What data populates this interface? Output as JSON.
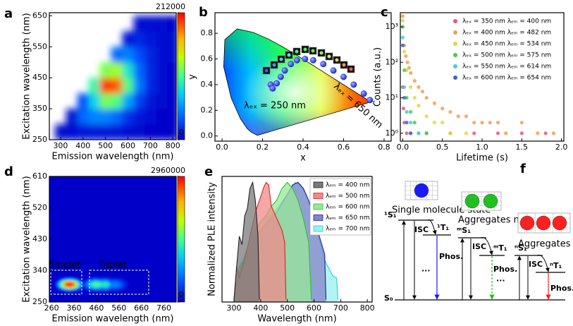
{
  "chart_data": [
    {
      "type": "heatmap",
      "panel_label": "a",
      "x_label": "Emission wavelength (nm)",
      "y_label": "Excitation wavelength (nm)",
      "xlim": [
        250,
        815
      ],
      "ylim": [
        250,
        660
      ],
      "xticks": [
        300,
        400,
        500,
        600,
        700,
        800
      ],
      "yticks": [
        250,
        350,
        450,
        550,
        650
      ],
      "zlim": [
        0,
        212000
      ],
      "zticks": [
        0,
        212000
      ],
      "x": [
        300,
        350,
        400,
        450,
        500,
        550,
        600,
        650,
        700,
        750,
        800
      ],
      "y": [
        275,
        325,
        375,
        425,
        475,
        525,
        575,
        625
      ],
      "z": [
        [
          3000,
          5000,
          8000,
          10000,
          10000,
          8000,
          5000,
          3000,
          1000,
          500,
          500
        ],
        [
          null,
          5000,
          40000,
          50000,
          50000,
          40000,
          20000,
          10000,
          5000,
          2000,
          1000
        ],
        [
          null,
          null,
          30000,
          80000,
          120000,
          110000,
          60000,
          25000,
          8000,
          3000,
          1000
        ],
        [
          null,
          null,
          null,
          100000,
          200000,
          190000,
          110000,
          45000,
          15000,
          5000,
          2000
        ],
        [
          null,
          null,
          null,
          null,
          120000,
          130000,
          90000,
          40000,
          15000,
          5000,
          2000
        ],
        [
          null,
          null,
          null,
          null,
          null,
          40000,
          50000,
          30000,
          15000,
          5000,
          3000
        ],
        [
          null,
          null,
          null,
          null,
          null,
          null,
          10000,
          15000,
          10000,
          5000,
          3000
        ],
        [
          null,
          null,
          null,
          null,
          null,
          null,
          null,
          5000,
          5000,
          3000,
          2000
        ]
      ]
    },
    {
      "type": "cie",
      "panel_label": "b",
      "x_label": "x",
      "y_label": "y",
      "xlim": [
        -0.035,
        0.835
      ],
      "ylim": [
        -0.04,
        0.96
      ],
      "xticks": [
        {
          "value": 0,
          "label": "0.0"
        },
        0.2,
        0.4,
        0.6,
        0.8
      ],
      "yticks": [
        {
          "value": 0,
          "label": "0.0"
        },
        0.2,
        0.4,
        0.6,
        0.8
      ],
      "locus_x": [
        0.1741,
        0.144,
        0.1241,
        0.0913,
        0.0454,
        0.0082,
        0.0139,
        0.0743,
        0.1547,
        0.2296,
        0.3016,
        0.3731,
        0.4441,
        0.5125,
        0.5752,
        0.627,
        0.6915,
        0.7347
      ],
      "locus_y": [
        0.005,
        0.0297,
        0.0578,
        0.1327,
        0.295,
        0.5384,
        0.7502,
        0.8338,
        0.8059,
        0.7543,
        0.6923,
        0.6245,
        0.5547,
        0.4866,
        0.4242,
        0.3725,
        0.3083,
        0.2653
      ],
      "x": [
        0.24,
        0.25,
        0.27,
        0.29,
        0.31,
        0.34,
        0.37,
        0.41,
        0.45,
        0.5,
        0.55,
        0.6,
        0.65,
        0.7,
        0.73
      ],
      "values": [
        0.4,
        0.37,
        0.41,
        0.46,
        0.51,
        0.56,
        0.59,
        0.6,
        0.59,
        0.56,
        0.51,
        0.46,
        0.4,
        0.33,
        0.28
      ],
      "color": "#2f3ee8",
      "annotations": [
        "λₑₓ = 250 nm",
        "λₑₓ = 650 nm"
      ]
    },
    {
      "type": "scatter",
      "panel_label": "c",
      "x_label": "Lifetime (s)",
      "y_label": "Counts (a.u.)",
      "ylog": true,
      "xlim": [
        -0.03,
        2.03
      ],
      "ylim": [
        0.6,
        2500
      ],
      "xticks": [
        {
          "value": 0,
          "label": "0.0"
        },
        0.5,
        {
          "value": 1,
          "label": "1.0"
        },
        1.5,
        {
          "value": 2,
          "label": "2.0"
        }
      ],
      "yticks": [
        {
          "value": 1,
          "label": "10⁰"
        },
        {
          "value": 10,
          "label": "10¹"
        },
        {
          "value": 100,
          "label": "10²"
        },
        {
          "value": 1000,
          "label": "10³"
        }
      ],
      "series": [
        {
          "name": "λₑₓ = 350 nm  λₑₘ = 400 nm",
          "color": "#e8577a",
          "x": [
            0,
            0.01,
            0.02,
            0.05,
            0.1,
            0.3,
            0.6,
            0.9,
            1.2,
            1.5,
            1.8
          ],
          "values": [
            20,
            5,
            2,
            1,
            1,
            1,
            1,
            1,
            1,
            1,
            1
          ]
        },
        {
          "name": "λₑₓ = 400 nm  λₑₘ = 482 nm",
          "color": "#f0a050",
          "x": [
            0,
            0.02,
            0.04,
            0.06,
            0.08,
            0.1,
            0.15,
            0.2,
            0.25,
            0.3,
            0.4,
            0.5,
            0.6,
            0.7,
            0.8,
            0.9,
            1.0,
            1.1,
            1.2,
            1.3,
            1.5,
            1.7,
            1.9
          ],
          "values": [
            2000,
            300,
            150,
            100,
            70,
            50,
            30,
            20,
            15,
            10,
            7,
            5,
            4,
            3,
            3,
            2,
            2,
            2,
            2,
            1,
            2,
            1,
            1
          ]
        },
        {
          "name": "λₑₓ = 450 nm  λₑₘ = 534 nm",
          "color": "#e0d838",
          "x": [
            0,
            0.02,
            0.05,
            0.1,
            0.15,
            0.2,
            0.3,
            0.4,
            0.5,
            0.6,
            0.8
          ],
          "values": [
            1500,
            200,
            60,
            20,
            10,
            6,
            3,
            2,
            2,
            1,
            1
          ]
        },
        {
          "name": "λₑₓ = 500 nm  λₑₘ = 575 nm",
          "color": "#40d040",
          "x": [
            0,
            0.02,
            0.05,
            0.1,
            0.15,
            0.2,
            0.3
          ],
          "values": [
            1000,
            60,
            10,
            4,
            2,
            1,
            1
          ]
        },
        {
          "name": "λₑₓ = 550 nm  λₑₘ = 614 nm",
          "color": "#40d0d0",
          "x": [
            0,
            0.02,
            0.05,
            0.1,
            0.2
          ],
          "values": [
            500,
            20,
            4,
            2,
            1
          ]
        },
        {
          "name": "λₑₓ = 600 nm  λₑₘ = 654 nm",
          "color": "#4060e0",
          "x": [
            0,
            0.02,
            0.05,
            0.1
          ],
          "values": [
            300,
            10,
            2,
            1
          ]
        }
      ]
    },
    {
      "type": "heatmap",
      "panel_label": "d",
      "x_label": "Emission wavelength (nm)",
      "y_label": "Excitation wavelength (nm)",
      "xlim": [
        250,
        815
      ],
      "ylim": [
        250,
        610
      ],
      "xticks": [
        260,
        360,
        460,
        560,
        660,
        760
      ],
      "yticks": [
        250,
        340,
        430,
        520,
        610
      ],
      "zlim": [
        0,
        2960000
      ],
      "zticks": [
        0,
        2960000
      ],
      "points": [
        {
          "x": 340,
          "y": 300,
          "value": 2960000
        },
        {
          "x": 460,
          "y": 300,
          "value": 1500000
        },
        {
          "x": 500,
          "y": 300,
          "value": 1300000
        },
        {
          "x": 540,
          "y": 300,
          "value": 700000
        }
      ],
      "annotations": [
        "Singlet",
        "Triplet"
      ]
    },
    {
      "type": "area",
      "panel_label": "e",
      "x_label": "Wavelength (nm)",
      "y_label": "Normalized PLE intensity",
      "xlim": [
        255,
        818
      ],
      "ylim": [
        0,
        1.05
      ],
      "xticks": [
        300,
        400,
        500,
        600,
        700,
        800
      ],
      "series": [
        {
          "name": "λₑₘ = 400 nm",
          "color": "#202020",
          "fill_color": "#7a7a7a",
          "x": [
            300,
            310,
            320,
            330,
            340,
            350,
            360,
            370,
            380,
            390,
            395
          ],
          "values": [
            0.02,
            0.3,
            0.55,
            0.48,
            0.72,
            0.78,
            0.95,
            1.0,
            0.85,
            0.55,
            0.02
          ]
        },
        {
          "name": "λₑₘ = 500 nm",
          "color": "#e02020",
          "fill_color": "#f08a8a",
          "x": [
            300,
            310,
            320,
            340,
            360,
            380,
            400,
            410,
            420,
            430,
            440,
            460,
            480,
            490,
            495
          ],
          "values": [
            0.02,
            0.3,
            0.2,
            0.35,
            0.55,
            0.75,
            0.88,
            0.95,
            1.0,
            0.98,
            0.8,
            0.7,
            0.6,
            0.5,
            0.02
          ]
        },
        {
          "name": "λₑₘ = 600 nm",
          "color": "#30c030",
          "fill_color": "#98e898",
          "x": [
            300,
            320,
            350,
            380,
            400,
            420,
            440,
            460,
            480,
            500,
            520,
            540,
            560,
            580,
            590
          ],
          "values": [
            0.02,
            0.25,
            0.45,
            0.6,
            0.67,
            0.72,
            0.8,
            0.85,
            0.95,
            1.0,
            0.95,
            0.85,
            0.7,
            0.5,
            0.02
          ]
        },
        {
          "name": "λₑₘ = 650 nm",
          "color": "#2020a0",
          "fill_color": "#8484c8",
          "x": [
            300,
            320,
            350,
            380,
            420,
            460,
            500,
            520,
            540,
            560,
            580,
            600,
            620,
            640,
            645
          ],
          "values": [
            0.02,
            0.25,
            0.4,
            0.55,
            0.65,
            0.75,
            0.9,
            0.98,
            1.0,
            0.95,
            0.85,
            0.7,
            0.55,
            0.4,
            0.02
          ]
        },
        {
          "name": "λₑₘ = 700 nm",
          "color": "#20d0e0",
          "fill_color": "#98f0f0",
          "x": [
            300,
            320,
            350,
            400,
            450,
            500,
            530,
            550,
            580,
            610,
            640,
            670,
            685,
            690
          ],
          "values": [
            0.02,
            0.3,
            0.4,
            0.6,
            0.75,
            0.9,
            1.0,
            0.98,
            0.85,
            0.6,
            0.35,
            0.22,
            0.2,
            0.02
          ]
        }
      ]
    }
  ],
  "diagram": {
    "panel_label": "f",
    "ground": "S₀",
    "ellipsis": [
      "···",
      "···"
    ],
    "groups": [
      {
        "name": "Single molecule state",
        "s1": "¹S₁",
        "t1": "¹T₁",
        "isc": "ISC",
        "phos": "Phos.",
        "color": "#1a1aff"
      },
      {
        "name": "Aggregates m",
        "s1": "ᵐS₁",
        "t1": "ᵐT₁",
        "isc": "ISC",
        "phos": "Phos.",
        "color": "#20c020"
      },
      {
        "name": "Aggregates n",
        "s1": "ⁿS₁",
        "t1": "ⁿT₁",
        "isc": "ISC",
        "phos": "Phos.",
        "color": "#ff2020"
      }
    ]
  }
}
